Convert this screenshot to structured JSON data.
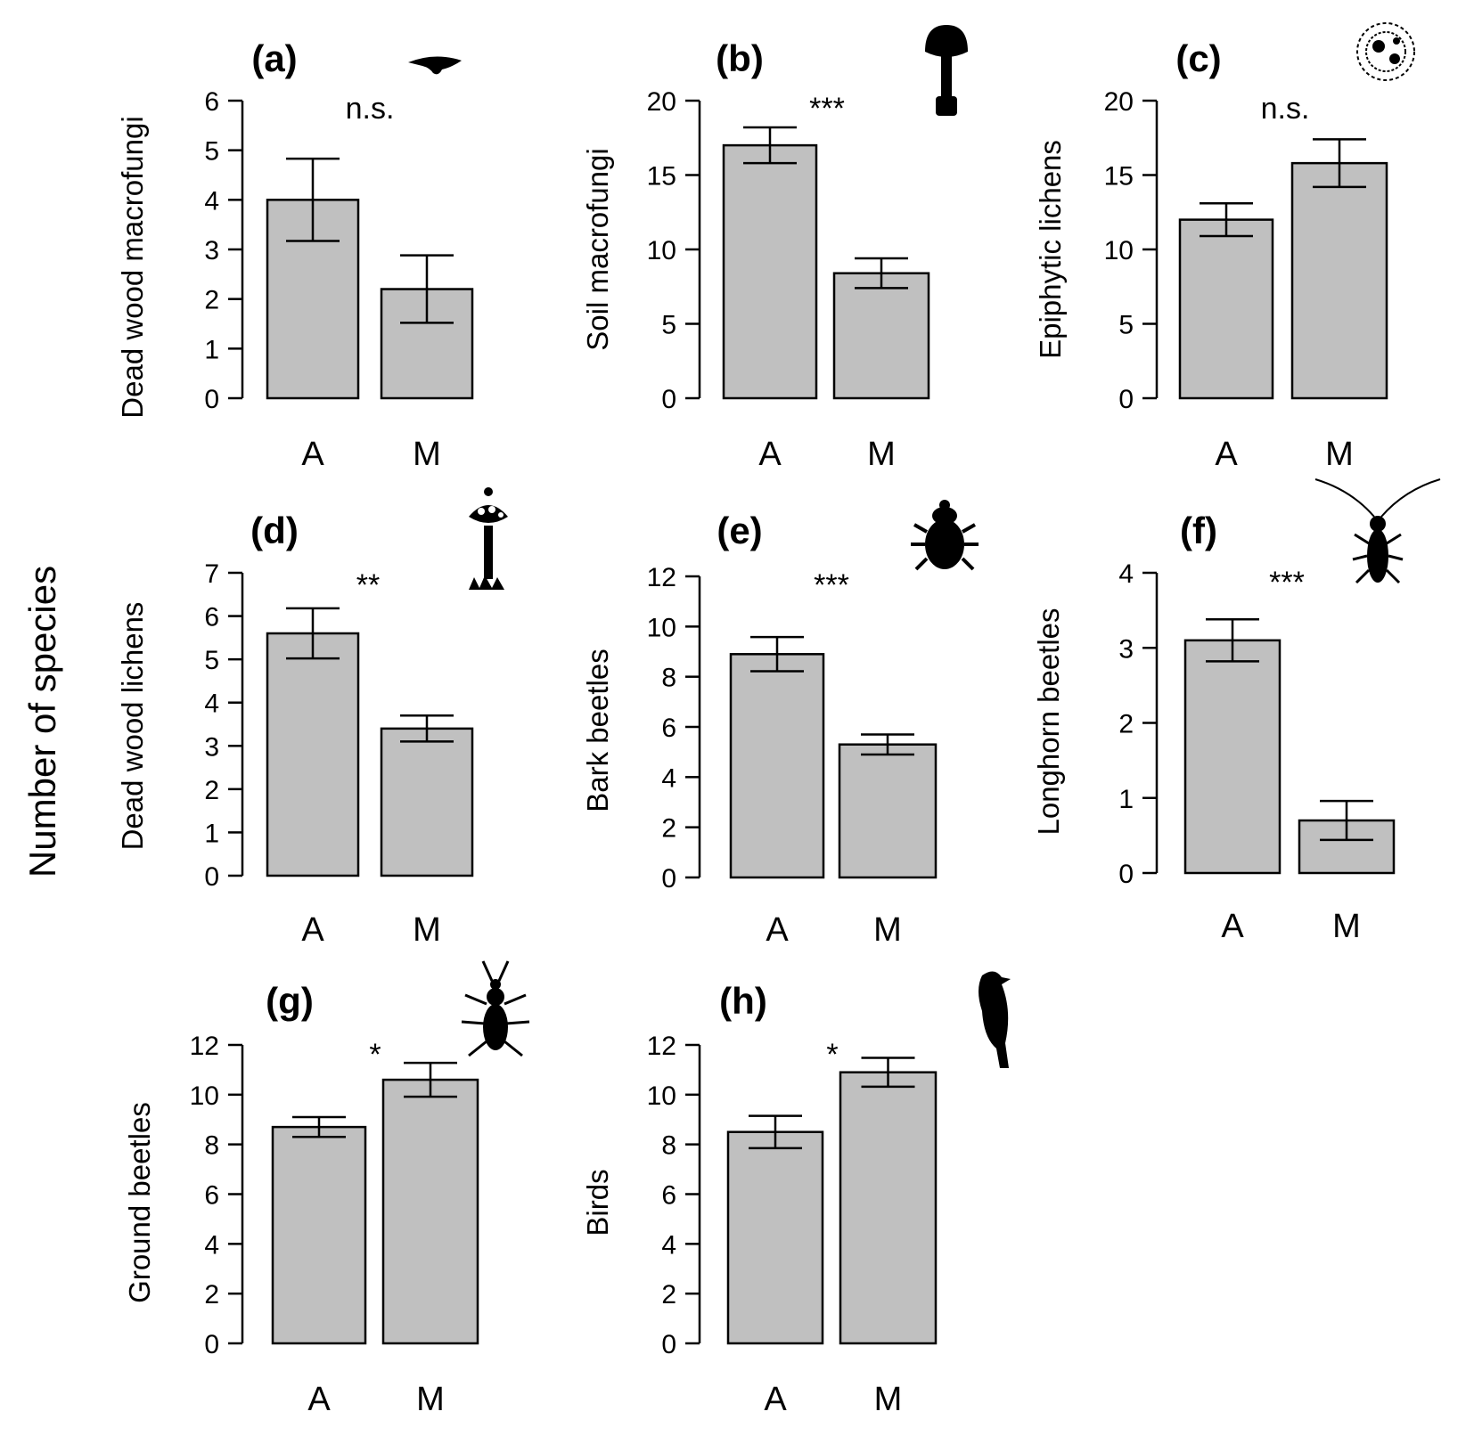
{
  "figure": {
    "shared_ylabel": "Number of species"
  },
  "chart_data": [
    {
      "type": "bar",
      "panel": "(a)",
      "icon": "bracket-fungus-icon",
      "ylabel": "Dead wood macrofungi",
      "categories": [
        "A",
        "M"
      ],
      "values": [
        4.0,
        2.2
      ],
      "errors": [
        0.83,
        0.68
      ],
      "ylim": [
        0,
        6
      ],
      "yticks": [
        0,
        1,
        2,
        3,
        4,
        5,
        6
      ],
      "significance": "n.s."
    },
    {
      "type": "bar",
      "panel": "(b)",
      "icon": "mushroom-icon",
      "ylabel": "Soil macrofungi",
      "categories": [
        "A",
        "M"
      ],
      "values": [
        17.0,
        8.4
      ],
      "errors": [
        1.2,
        1.0
      ],
      "ylim": [
        0,
        20
      ],
      "yticks": [
        0,
        5,
        10,
        15,
        20
      ],
      "significance": "***"
    },
    {
      "type": "bar",
      "panel": "(c)",
      "icon": "foliose-lichen-icon",
      "ylabel": "Epiphytic lichens",
      "categories": [
        "A",
        "M"
      ],
      "values": [
        12.0,
        15.8
      ],
      "errors": [
        1.1,
        1.6
      ],
      "ylim": [
        0,
        20
      ],
      "yticks": [
        0,
        5,
        10,
        15,
        20
      ],
      "significance": "n.s."
    },
    {
      "type": "bar",
      "panel": "(d)",
      "icon": "pin-lichen-icon",
      "ylabel": "Dead wood lichens",
      "categories": [
        "A",
        "M"
      ],
      "values": [
        5.6,
        3.4
      ],
      "errors": [
        0.58,
        0.3
      ],
      "ylim": [
        0,
        7
      ],
      "yticks": [
        0,
        1,
        2,
        3,
        4,
        5,
        6,
        7
      ],
      "significance": "**"
    },
    {
      "type": "bar",
      "panel": "(e)",
      "icon": "bark-beetle-icon",
      "ylabel": "Bark beetles",
      "categories": [
        "A",
        "M"
      ],
      "values": [
        8.9,
        5.3
      ],
      "errors": [
        0.68,
        0.4
      ],
      "ylim": [
        0,
        12
      ],
      "yticks": [
        0,
        2,
        4,
        6,
        8,
        10,
        12
      ],
      "significance": "***"
    },
    {
      "type": "bar",
      "panel": "(f)",
      "icon": "longhorn-beetle-icon",
      "ylabel": "Longhorn beetles",
      "categories": [
        "A",
        "M"
      ],
      "values": [
        3.1,
        0.7
      ],
      "errors": [
        0.28,
        0.26
      ],
      "ylim": [
        0,
        4
      ],
      "yticks": [
        0,
        1,
        2,
        3,
        4
      ],
      "significance": "***"
    },
    {
      "type": "bar",
      "panel": "(g)",
      "icon": "ground-beetle-icon",
      "ylabel": "Ground beetles",
      "categories": [
        "A",
        "M"
      ],
      "values": [
        8.7,
        10.6
      ],
      "errors": [
        0.4,
        0.68
      ],
      "ylim": [
        0,
        12
      ],
      "yticks": [
        0,
        2,
        4,
        6,
        8,
        10,
        12
      ],
      "significance": "*"
    },
    {
      "type": "bar",
      "panel": "(h)",
      "icon": "bird-icon",
      "ylabel": "Birds",
      "categories": [
        "A",
        "M"
      ],
      "values": [
        8.5,
        10.9
      ],
      "errors": [
        0.65,
        0.58
      ],
      "ylim": [
        0,
        12
      ],
      "yticks": [
        0,
        2,
        4,
        6,
        8,
        10,
        12
      ],
      "significance": "*"
    }
  ],
  "colors": {
    "bar_fill": "#c0c0c0",
    "stroke": "#000000",
    "icon": "#000000"
  }
}
